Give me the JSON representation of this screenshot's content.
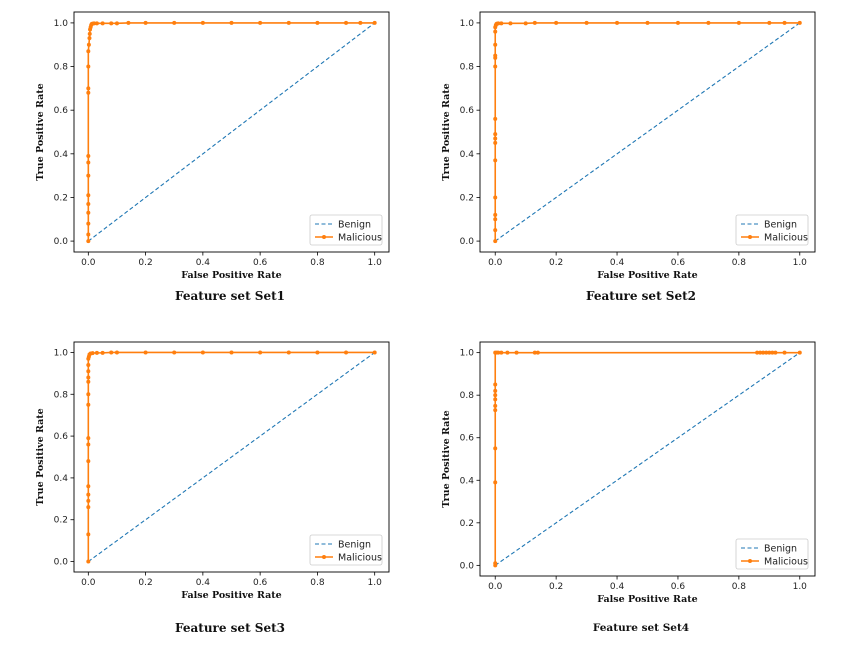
{
  "chart_data": [
    {
      "type": "line",
      "caption": "Feature set Set1",
      "xlabel": "False Positive Rate",
      "ylabel": "True Positive Rate",
      "xlim": [
        -0.05,
        1.05
      ],
      "ylim": [
        -0.05,
        1.05
      ],
      "xticks": [
        "0.0",
        "0.2",
        "0.4",
        "0.6",
        "0.8",
        "1.0"
      ],
      "yticks": [
        "0.0",
        "0.2",
        "0.4",
        "0.6",
        "0.8",
        "1.0"
      ],
      "legend_position": "bottom-right",
      "grid": false,
      "series": [
        {
          "name": "Benign",
          "style": "dashed",
          "color": "#1f77b4",
          "x": [
            0,
            1
          ],
          "y": [
            0,
            1
          ]
        },
        {
          "name": "Malicious",
          "style": "line-with-markers",
          "color": "#ff7f0e",
          "x": [
            0,
            0,
            0,
            0,
            0,
            0,
            0,
            0,
            0,
            0,
            0,
            0,
            0,
            0.002,
            0.004,
            0.005,
            0.006,
            0.008,
            0.01,
            0.012,
            0.015,
            0.02,
            0.03,
            0.05,
            0.08,
            0.1,
            0.14,
            0.2,
            0.3,
            0.4,
            0.5,
            0.6,
            0.7,
            0.8,
            0.9,
            0.95,
            1.0
          ],
          "y": [
            0,
            0.03,
            0.08,
            0.13,
            0.17,
            0.21,
            0.3,
            0.36,
            0.39,
            0.68,
            0.7,
            0.8,
            0.87,
            0.9,
            0.93,
            0.95,
            0.97,
            0.98,
            0.99,
            0.995,
            0.997,
            0.998,
            0.998,
            0.998,
            0.998,
            0.998,
            1.0,
            1.0,
            1.0,
            1.0,
            1.0,
            1.0,
            1.0,
            1.0,
            1.0,
            1.0,
            1.0
          ]
        }
      ]
    },
    {
      "type": "line",
      "caption": "Feature set Set2",
      "xlabel": "False Positive Rate",
      "ylabel": "True Positive Rate",
      "xlim": [
        -0.05,
        1.05
      ],
      "ylim": [
        -0.05,
        1.05
      ],
      "xticks": [
        "0.0",
        "0.2",
        "0.4",
        "0.6",
        "0.8",
        "1.0"
      ],
      "yticks": [
        "0.0",
        "0.2",
        "0.4",
        "0.6",
        "0.8",
        "1.0"
      ],
      "legend_position": "bottom-right",
      "grid": false,
      "series": [
        {
          "name": "Benign",
          "style": "dashed",
          "color": "#1f77b4",
          "x": [
            0,
            1
          ],
          "y": [
            0,
            1
          ]
        },
        {
          "name": "Malicious",
          "style": "line-with-markers",
          "color": "#ff7f0e",
          "x": [
            0,
            0,
            0,
            0,
            0,
            0,
            0,
            0,
            0,
            0,
            0,
            0,
            0,
            0,
            0,
            0,
            0.002,
            0.004,
            0.006,
            0.01,
            0.02,
            0.05,
            0.1,
            0.13,
            0.2,
            0.3,
            0.4,
            0.5,
            0.6,
            0.7,
            0.8,
            0.9,
            0.95,
            1.0
          ],
          "y": [
            0,
            0.05,
            0.1,
            0.12,
            0.2,
            0.37,
            0.45,
            0.47,
            0.49,
            0.56,
            0.8,
            0.84,
            0.85,
            0.9,
            0.96,
            0.98,
            0.99,
            0.995,
            0.997,
            0.998,
            0.998,
            0.998,
            0.998,
            1.0,
            1.0,
            1.0,
            1.0,
            1.0,
            1.0,
            1.0,
            1.0,
            1.0,
            1.0,
            1.0
          ]
        }
      ]
    },
    {
      "type": "line",
      "caption": "Feature set Set3",
      "xlabel": "False Positive Rate",
      "ylabel": "True Positive Rate",
      "xlim": [
        -0.05,
        1.05
      ],
      "ylim": [
        -0.05,
        1.05
      ],
      "xticks": [
        "0.0",
        "0.2",
        "0.4",
        "0.6",
        "0.8",
        "1.0"
      ],
      "yticks": [
        "0.0",
        "0.2",
        "0.4",
        "0.6",
        "0.8",
        "1.0"
      ],
      "legend_position": "bottom-right",
      "grid": false,
      "series": [
        {
          "name": "Benign",
          "style": "dashed",
          "color": "#1f77b4",
          "x": [
            0,
            1
          ],
          "y": [
            0,
            1
          ]
        },
        {
          "name": "Malicious",
          "style": "line-with-markers",
          "color": "#ff7f0e",
          "x": [
            0,
            0,
            0,
            0,
            0,
            0,
            0,
            0,
            0,
            0,
            0,
            0,
            0,
            0,
            0,
            0,
            0.002,
            0.004,
            0.008,
            0.015,
            0.03,
            0.05,
            0.08,
            0.1,
            0.2,
            0.3,
            0.4,
            0.5,
            0.6,
            0.7,
            0.8,
            0.9,
            1.0
          ],
          "y": [
            0,
            0.13,
            0.26,
            0.29,
            0.32,
            0.36,
            0.48,
            0.56,
            0.59,
            0.75,
            0.8,
            0.86,
            0.88,
            0.91,
            0.94,
            0.97,
            0.98,
            0.99,
            0.995,
            0.997,
            0.998,
            0.998,
            1.0,
            1.0,
            1.0,
            1.0,
            1.0,
            1.0,
            1.0,
            1.0,
            1.0,
            1.0,
            1.0
          ]
        }
      ]
    },
    {
      "type": "line",
      "caption": "Feature set Set4",
      "xlabel": "False Positive Rate",
      "ylabel": "True Positive Rate",
      "xlim": [
        -0.05,
        1.05
      ],
      "ylim": [
        -0.05,
        1.05
      ],
      "xticks": [
        "0.0",
        "0.2",
        "0.4",
        "0.6",
        "0.8",
        "1.0"
      ],
      "yticks": [
        "0.0",
        "0.2",
        "0.4",
        "0.6",
        "0.8",
        "1.0"
      ],
      "legend_position": "bottom-right",
      "grid": false,
      "series": [
        {
          "name": "Benign",
          "style": "dashed",
          "color": "#1f77b4",
          "x": [
            0,
            1
          ],
          "y": [
            0,
            1
          ]
        },
        {
          "name": "Malicious",
          "style": "line-with-markers",
          "color": "#ff7f0e",
          "x": [
            0,
            0,
            0,
            0,
            0,
            0,
            0,
            0,
            0,
            0,
            0,
            0.005,
            0.01,
            0.02,
            0.04,
            0.07,
            0.13,
            0.14,
            0.86,
            0.87,
            0.88,
            0.89,
            0.9,
            0.91,
            0.92,
            0.95,
            1.0
          ],
          "y": [
            0,
            0.01,
            0.39,
            0.55,
            0.73,
            0.75,
            0.78,
            0.8,
            0.82,
            0.85,
            1.0,
            1.0,
            1.0,
            1.0,
            1.0,
            1.0,
            1.0,
            1.0,
            1.0,
            1.0,
            1.0,
            1.0,
            1.0,
            1.0,
            1.0,
            1.0,
            1.0
          ]
        }
      ]
    }
  ]
}
